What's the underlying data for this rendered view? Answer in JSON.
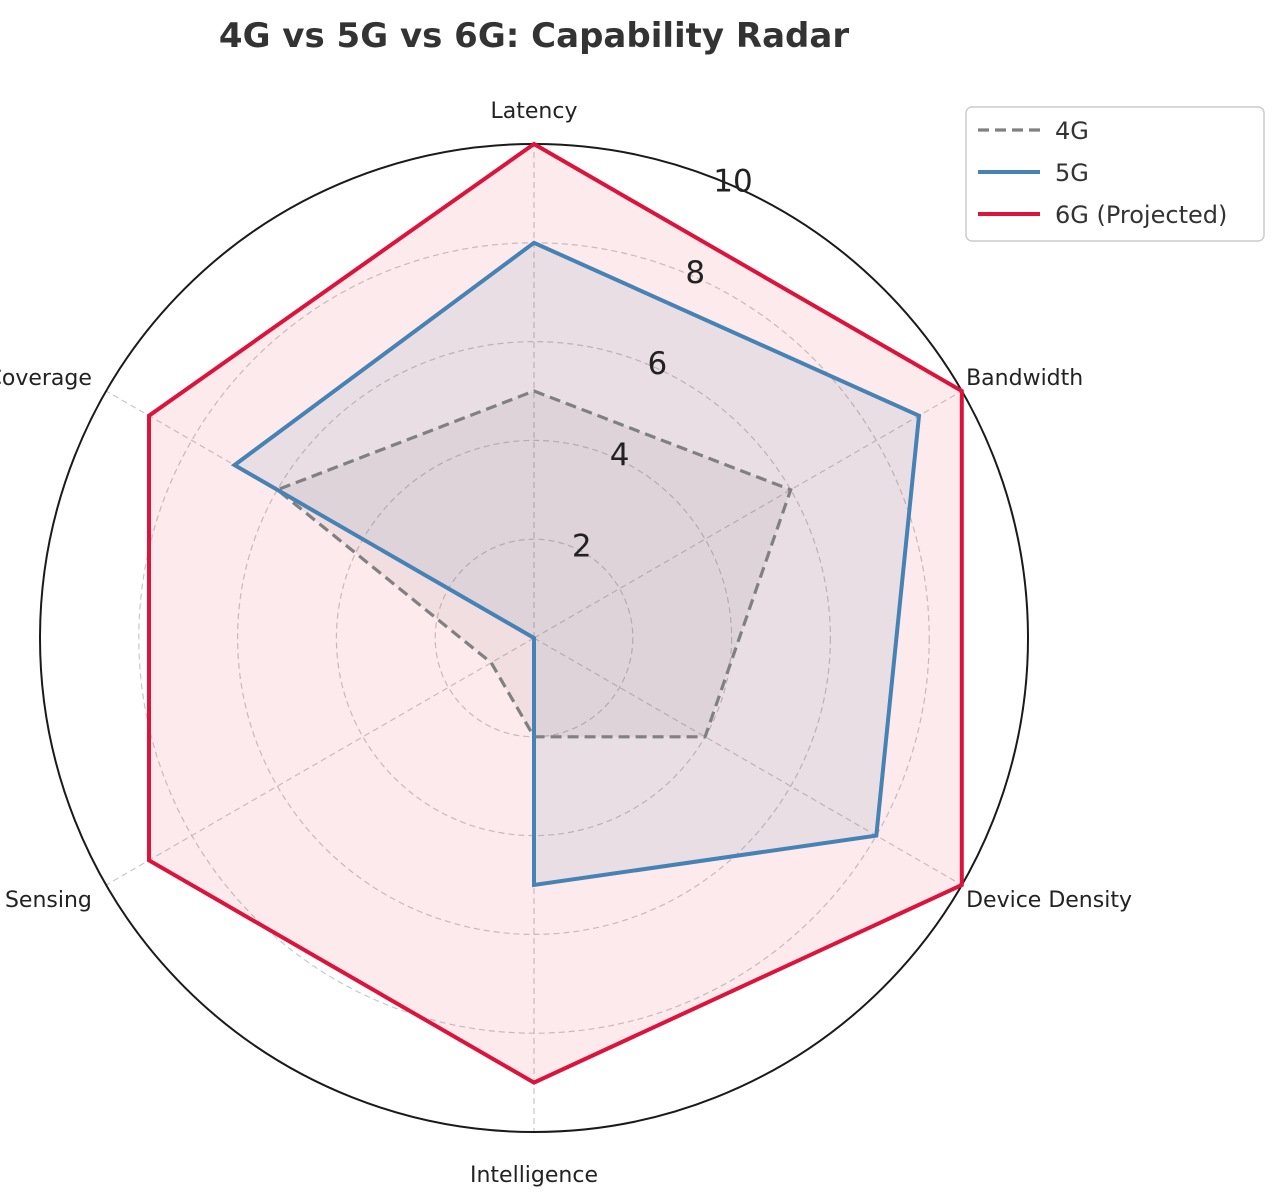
{
  "chart_data": {
    "type": "radar",
    "title": "4G vs 5G vs 6G: Capability Radar",
    "categories": [
      "Latency",
      "Bandwidth",
      "Device Density",
      "Intelligence",
      "Sensing",
      "Coverage"
    ],
    "rlim": [
      0,
      10
    ],
    "rticks": [
      2,
      4,
      6,
      8,
      10
    ],
    "rtick_labels": [
      "2",
      "4",
      "6",
      "8",
      "10"
    ],
    "grid": true,
    "legend_position": "top-right",
    "series": [
      {
        "name": "4G",
        "values": [
          5,
          6,
          4,
          2,
          1,
          6
        ],
        "color": "#808080",
        "linestyle": "dashed",
        "fill_opacity": 0.1
      },
      {
        "name": "5G",
        "values": [
          8,
          9,
          8,
          5,
          0,
          7
        ],
        "color": "#4682b4",
        "linestyle": "solid",
        "fill_opacity": 0.1
      },
      {
        "name": "6G (Projected)",
        "values": [
          10,
          10,
          10,
          9,
          9,
          9
        ],
        "color": "#dc143c",
        "linestyle": "solid",
        "fill_opacity": 0.09
      }
    ]
  }
}
